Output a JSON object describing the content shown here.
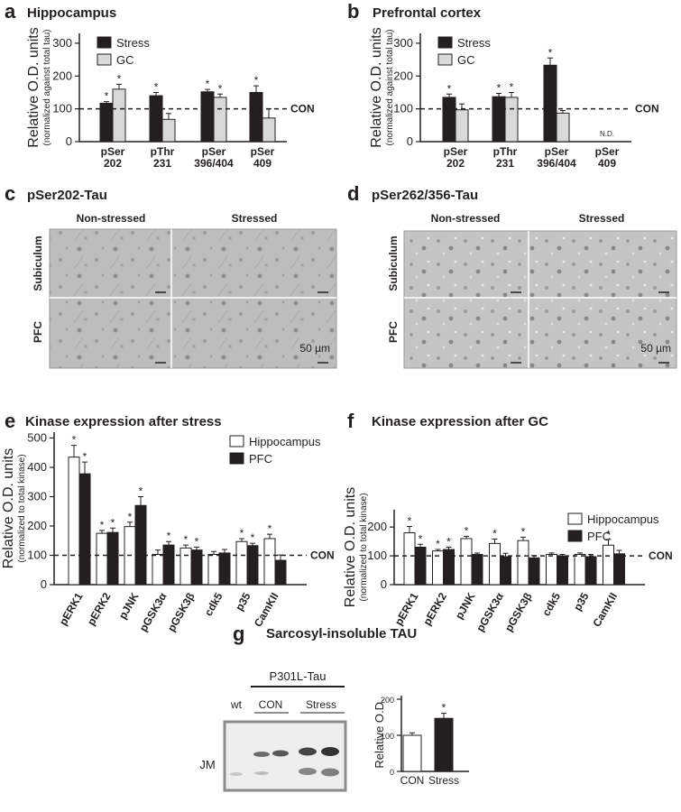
{
  "chart_data": [
    {
      "type": "bar",
      "letter": "a",
      "title": "Hippocampus",
      "ylabel": "Relative O.D. units",
      "ylabel_sub": "(normalized against total tau)",
      "categories": [
        "pSer\n202",
        "pThr\n231",
        "pSer\n396/404",
        "pSer\n409"
      ],
      "series": [
        {
          "name": "Stress",
          "color": "#231f20",
          "values": [
            117,
            140,
            152,
            150
          ],
          "errors": [
            5,
            10,
            7,
            20
          ],
          "markers": [
            "*",
            "*",
            "*",
            "*"
          ]
        },
        {
          "name": "GC",
          "color": "#d9d9d9",
          "values": [
            160,
            68,
            135,
            72
          ],
          "errors": [
            15,
            18,
            10,
            28
          ],
          "markers": [
            "*",
            null,
            "*",
            null
          ]
        }
      ],
      "ylim": [
        0,
        330
      ],
      "yticks": [
        0,
        100,
        200,
        300
      ],
      "reference_line": {
        "value": 100,
        "label": "CON"
      },
      "legend": "upper left"
    },
    {
      "type": "bar",
      "letter": "b",
      "title": "Prefrontal cortex",
      "ylabel": "Relative O.D. units",
      "ylabel_sub": "(normalized against total tau)",
      "categories": [
        "pSer\n202",
        "pThr\n231",
        "pSer\n396/404",
        "pSer\n409"
      ],
      "series": [
        {
          "name": "Stress",
          "color": "#231f20",
          "values": [
            135,
            137,
            233,
            null
          ],
          "errors": [
            10,
            10,
            22,
            null
          ],
          "markers": [
            "*",
            "*",
            "*",
            null
          ]
        },
        {
          "name": "GC",
          "color": "#d9d9d9",
          "values": [
            97,
            135,
            87,
            null
          ],
          "errors": [
            18,
            15,
            8,
            null
          ],
          "markers": [
            null,
            "*",
            null,
            null
          ]
        }
      ],
      "na_label": "N.D.",
      "ylim": [
        0,
        330
      ],
      "yticks": [
        0,
        100,
        200,
        300
      ],
      "reference_line": {
        "value": 100,
        "label": "CON"
      },
      "legend": "upper left"
    },
    {
      "type": "bar",
      "letter": "e",
      "title": "Kinase expression after stress",
      "ylabel": "Relative O.D. units",
      "ylabel_sub": "(normalized to total kinase)",
      "categories": [
        "pERK1",
        "pERK2",
        "pJNK",
        "pGSK3α",
        "pGSK3β",
        "cdk5",
        "p35",
        "CamKII"
      ],
      "series": [
        {
          "name": "Hippocampus",
          "color": "#ffffff",
          "values": [
            435,
            175,
            198,
            103,
            125,
            103,
            147,
            157
          ],
          "errors": [
            40,
            10,
            15,
            15,
            10,
            10,
            10,
            15
          ],
          "markers": [
            "*",
            "*",
            "*",
            null,
            "*",
            null,
            "*",
            "*"
          ]
        },
        {
          "name": "PFC",
          "color": "#231f20",
          "values": [
            378,
            178,
            270,
            135,
            118,
            108,
            133,
            83
          ],
          "errors": [
            40,
            15,
            30,
            12,
            10,
            12,
            8,
            18
          ],
          "markers": [
            "*",
            "*",
            "*",
            "*",
            "*",
            null,
            "*",
            null
          ]
        }
      ],
      "ylim": [
        0,
        520
      ],
      "yticks": [
        0,
        100,
        200,
        300,
        400,
        500
      ],
      "reference_line": {
        "value": 100,
        "label": "CON"
      },
      "legend": "upper right"
    },
    {
      "type": "bar",
      "letter": "f",
      "title": "Kinase expression after GC",
      "ylabel": "Relative O.D. units",
      "ylabel_sub": "(normalized to total kinase)",
      "categories": [
        "pERK1",
        "pERK2",
        "pJNK",
        "pGSK3α",
        "pGSK3β",
        "cdk5",
        "p35",
        "CamKII"
      ],
      "series": [
        {
          "name": "Hippocampus",
          "color": "#ffffff",
          "values": [
            180,
            117,
            160,
            143,
            153,
            105,
            105,
            137
          ],
          "errors": [
            22,
            5,
            8,
            15,
            12,
            5,
            5,
            20
          ],
          "markers": [
            "*",
            "*",
            "*",
            "*",
            "*",
            null,
            null,
            "*"
          ]
        },
        {
          "name": "PFC",
          "color": "#231f20",
          "values": [
            130,
            122,
            105,
            97,
            93,
            100,
            97,
            107
          ],
          "errors": [
            10,
            8,
            5,
            12,
            8,
            5,
            8,
            12
          ],
          "markers": [
            "*",
            "*",
            null,
            null,
            null,
            null,
            null,
            null
          ]
        }
      ],
      "ylim": [
        0,
        260
      ],
      "yticks": [
        0,
        100,
        200
      ],
      "reference_line": {
        "value": 100,
        "label": "CON"
      },
      "legend": "upper right"
    },
    {
      "type": "bar",
      "ylabel": "Relative O.D.",
      "categories": [
        "CON",
        "Stress"
      ],
      "series": [
        {
          "colors": [
            "#ffffff",
            "#231f20"
          ],
          "values": [
            100,
            147
          ],
          "errors": [
            7,
            14
          ],
          "markers": [
            null,
            "*"
          ]
        }
      ],
      "ylim": [
        0,
        210
      ],
      "yticks": [
        0,
        100,
        200
      ]
    }
  ],
  "panels": {
    "c": {
      "letter": "c",
      "title": "pSer202-Tau",
      "columns": [
        "Non-stressed",
        "Stressed"
      ],
      "rows": [
        "Subiculum",
        "PFC"
      ],
      "scale": "50 µm"
    },
    "d": {
      "letter": "d",
      "title": "pSer262/356-Tau",
      "columns": [
        "Non-stressed",
        "Stressed"
      ],
      "rows": [
        "Subiculum",
        "PFC"
      ],
      "scale": "50 µm"
    },
    "g": {
      "letter": "g",
      "title": "Sarcosyl-insoluble TAU",
      "blot_header": "P301L-Tau",
      "lanes": [
        "wt",
        "CON",
        "Stress"
      ],
      "row_label": "JM"
    }
  }
}
